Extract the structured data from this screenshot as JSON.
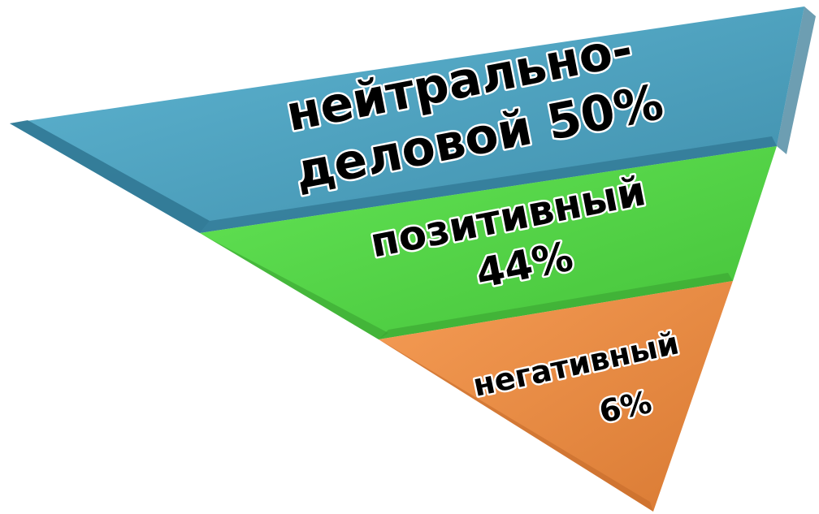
{
  "chart_data": {
    "type": "pyramid",
    "orientation": "inverted",
    "segments": [
      {
        "label_lines": [
          "нейтрально-",
          "деловой 50%"
        ],
        "category": "нейтрально-деловой",
        "value": 50,
        "unit": "%",
        "color": "#4fa3c1"
      },
      {
        "label_lines": [
          "позитивный",
          "44%"
        ],
        "category": "позитивный",
        "value": 44,
        "unit": "%",
        "color": "#58d84a"
      },
      {
        "label_lines": [
          "негативный",
          "6%"
        ],
        "category": "негативный",
        "value": 6,
        "unit": "%",
        "color": "#ec9047"
      }
    ]
  }
}
